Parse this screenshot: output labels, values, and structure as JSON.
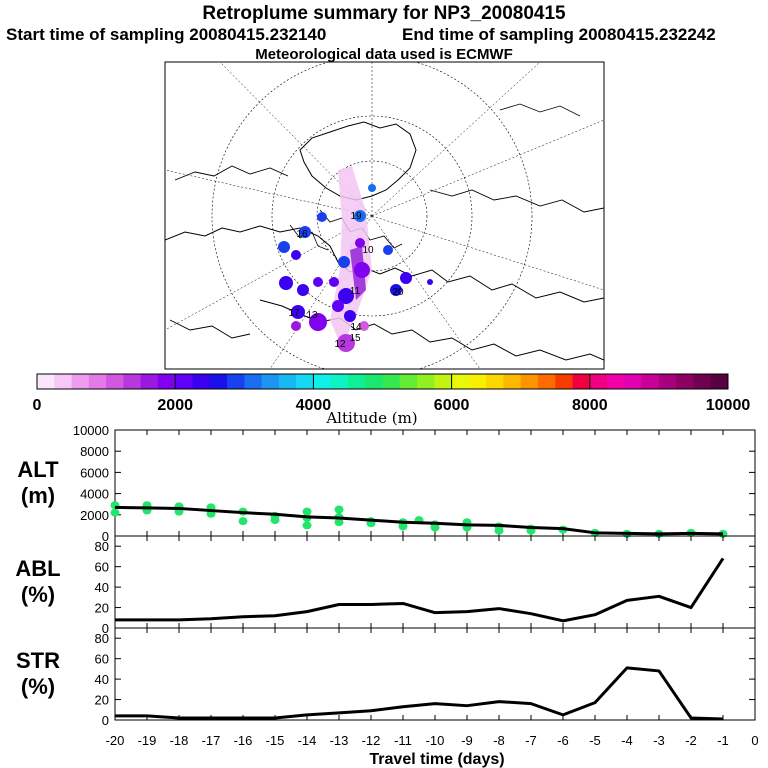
{
  "header": {
    "title": "Retroplume summary for NP3_20080415",
    "start_label": "Start time of sampling 20080415.232140",
    "end_label": "End time of sampling 20080415.232242",
    "met_label": "Meteorological data used is ECMWF"
  },
  "colorbar": {
    "tick_labels": [
      "0",
      "2000",
      "4000",
      "6000",
      "8000",
      "10000"
    ],
    "title": "Altitude (m)",
    "colors": [
      "#fce6fc",
      "#f7c8f7",
      "#ef9cf0",
      "#e37ae6",
      "#d258e0",
      "#b738dc",
      "#9b18e0",
      "#8000f0",
      "#6000f6",
      "#3c00f0",
      "#1a10e8",
      "#1840ec",
      "#1a6cf0",
      "#1c96f2",
      "#18b8f2",
      "#16d8f4",
      "#10f0e8",
      "#0ef2c4",
      "#10ee96",
      "#1ae86e",
      "#36e850",
      "#62ec34",
      "#92f020",
      "#c0f412",
      "#e8f80a",
      "#f8f000",
      "#fcd600",
      "#fcb800",
      "#fc9400",
      "#fc6c00",
      "#f83c00",
      "#f00040",
      "#f00080",
      "#f000a8",
      "#e000b0",
      "#c80098",
      "#a8007c",
      "#8c0064",
      "#700050",
      "#580040"
    ]
  },
  "map": {
    "trajectory_labels": [
      "13",
      "15",
      "16",
      "17",
      "10",
      "11",
      "12",
      "14",
      "19",
      "20"
    ]
  },
  "chart_data": [
    {
      "type": "line",
      "panel": "ALT",
      "ylabel_lines": [
        "ALT",
        "(m)"
      ],
      "ylim": [
        0,
        10000
      ],
      "yticks": [
        "0",
        "2000",
        "4000",
        "6000",
        "8000",
        "10000"
      ],
      "x": [
        -20,
        -19,
        -18,
        -17,
        -16,
        -15,
        -14,
        -13,
        -12,
        -11,
        -10,
        -9,
        -8,
        -7,
        -6,
        -5,
        -4,
        -3,
        -2,
        -1
      ],
      "values": [
        2700,
        2650,
        2600,
        2400,
        2200,
        2050,
        1800,
        1700,
        1500,
        1300,
        1200,
        1050,
        1000,
        800,
        700,
        300,
        250,
        200,
        250,
        200
      ],
      "scatter_points": [
        [
          -20,
          2900
        ],
        [
          -20,
          2200
        ],
        [
          -19,
          2900
        ],
        [
          -19,
          2400
        ],
        [
          -18,
          2800
        ],
        [
          -18,
          2300
        ],
        [
          -17,
          2700
        ],
        [
          -17,
          2100
        ],
        [
          -16,
          2300
        ],
        [
          -16,
          1400
        ],
        [
          -15,
          1900
        ],
        [
          -15,
          1500
        ],
        [
          -14,
          2300
        ],
        [
          -14,
          1700
        ],
        [
          -14,
          1000
        ],
        [
          -13,
          2500
        ],
        [
          -13,
          1800
        ],
        [
          -13,
          1300
        ],
        [
          -12,
          1400
        ],
        [
          -12,
          1200
        ],
        [
          -11,
          1300
        ],
        [
          -11,
          900
        ],
        [
          -10.5,
          1500
        ],
        [
          -10,
          1100
        ],
        [
          -10,
          800
        ],
        [
          -9,
          1300
        ],
        [
          -9,
          800
        ],
        [
          -8,
          900
        ],
        [
          -8,
          500
        ],
        [
          -7,
          700
        ],
        [
          -7,
          500
        ],
        [
          -6,
          600
        ],
        [
          -5,
          300
        ],
        [
          -4,
          200
        ],
        [
          -3,
          200
        ],
        [
          -2,
          300
        ],
        [
          -1,
          200
        ]
      ]
    },
    {
      "type": "line",
      "panel": "ABL",
      "ylabel_lines": [
        "ABL",
        "(%)"
      ],
      "ylim": [
        0,
        90
      ],
      "yticks": [
        "0",
        "20",
        "40",
        "60",
        "80"
      ],
      "x": [
        -20,
        -19,
        -18,
        -17,
        -16,
        -15,
        -14,
        -13,
        -12,
        -11,
        -10,
        -9,
        -8,
        -7,
        -6,
        -5,
        -4,
        -3,
        -2,
        -1
      ],
      "values": [
        8,
        8,
        8,
        9,
        11,
        12,
        16,
        23,
        23,
        24,
        15,
        16,
        19,
        14,
        7,
        13,
        27,
        31,
        20,
        68
      ]
    },
    {
      "type": "line",
      "panel": "STR",
      "ylabel_lines": [
        "STR",
        "(%)"
      ],
      "ylim": [
        0,
        90
      ],
      "yticks": [
        "0",
        "20",
        "40",
        "60",
        "80"
      ],
      "x": [
        -20,
        -19,
        -18,
        -17,
        -16,
        -15,
        -14,
        -13,
        -12,
        -11,
        -10,
        -9,
        -8,
        -7,
        -6,
        -5,
        -4,
        -3,
        -2,
        -1
      ],
      "values": [
        4,
        4,
        2,
        2,
        2,
        2,
        5,
        7,
        9,
        13,
        16,
        14,
        18,
        16,
        5,
        17,
        51,
        48,
        2,
        1
      ]
    }
  ],
  "xaxis": {
    "ticks": [
      "-20",
      "-19",
      "-18",
      "-17",
      "-16",
      "-15",
      "-14",
      "-13",
      "-12",
      "-11",
      "-10",
      "-9",
      "-8",
      "-7",
      "-6",
      "-5",
      "-4",
      "-3",
      "-2",
      "-1",
      "0"
    ],
    "label": "Travel time (days)"
  }
}
